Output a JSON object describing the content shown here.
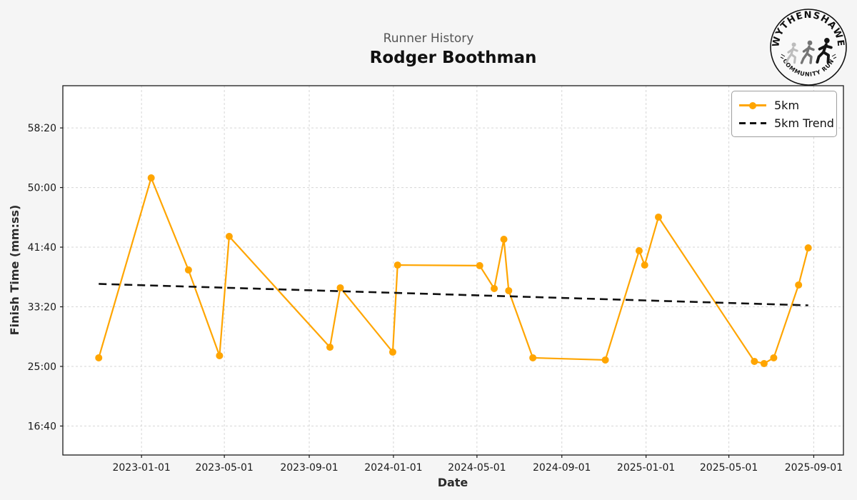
{
  "header": {
    "suptitle": "Runner History",
    "title": "Rodger Boothman"
  },
  "logo": {
    "top_text": "WYTHENSHAWE",
    "bottom_text": "COMMUNITY RUN"
  },
  "legend": {
    "items": [
      {
        "label": "5km"
      },
      {
        "label": "5km Trend"
      }
    ]
  },
  "colors": {
    "series": "#FFA500",
    "trend": "#111111",
    "figure_bg": "#f5f5f5",
    "plot_bg": "#ffffff",
    "grid": "#d6d6d6",
    "suptitle": "#555555"
  },
  "chart_data": {
    "type": "line",
    "title": "Rodger Boothman",
    "suptitle": "Runner History",
    "xlabel": "Date",
    "ylabel": "Finish Time (mm:ss)",
    "grid": true,
    "legend_position": "upper right",
    "xlim": [
      "2022-09-09",
      "2025-10-14"
    ],
    "ylim_seconds": [
      757,
      3854
    ],
    "x_ticks": [
      {
        "date": "2023-01-01",
        "label": "2023-01-01"
      },
      {
        "date": "2023-05-01",
        "label": "2023-05-01"
      },
      {
        "date": "2023-09-01",
        "label": "2023-09-01"
      },
      {
        "date": "2024-01-01",
        "label": "2024-01-01"
      },
      {
        "date": "2024-05-01",
        "label": "2024-05-01"
      },
      {
        "date": "2024-09-01",
        "label": "2024-09-01"
      },
      {
        "date": "2025-01-01",
        "label": "2025-01-01"
      },
      {
        "date": "2025-05-01",
        "label": "2025-05-01"
      },
      {
        "date": "2025-09-01",
        "label": "2025-09-01"
      }
    ],
    "y_ticks": [
      {
        "seconds": 1000,
        "label": "16:40"
      },
      {
        "seconds": 1500,
        "label": "25:00"
      },
      {
        "seconds": 2000,
        "label": "33:20"
      },
      {
        "seconds": 2500,
        "label": "41:40"
      },
      {
        "seconds": 3000,
        "label": "50:00"
      },
      {
        "seconds": 3500,
        "label": "58:20"
      }
    ],
    "series": [
      {
        "name": "5km",
        "color": "#FFA500",
        "style": "solid",
        "marker": "circle",
        "points": [
          {
            "date": "2022-10-31",
            "time": "26:12",
            "seconds": 1572
          },
          {
            "date": "2023-01-15",
            "time": "51:21",
            "seconds": 3081
          },
          {
            "date": "2023-03-10",
            "time": "38:29",
            "seconds": 2309
          },
          {
            "date": "2023-04-24",
            "time": "26:30",
            "seconds": 1590
          },
          {
            "date": "2023-05-08",
            "time": "43:10",
            "seconds": 2590
          },
          {
            "date": "2023-10-01",
            "time": "27:41",
            "seconds": 1661
          },
          {
            "date": "2023-10-16",
            "time": "35:59",
            "seconds": 2159
          },
          {
            "date": "2023-12-31",
            "time": "27:00",
            "seconds": 1620
          },
          {
            "date": "2024-01-07",
            "time": "39:10",
            "seconds": 2350
          },
          {
            "date": "2024-05-05",
            "time": "39:05",
            "seconds": 2345
          },
          {
            "date": "2024-05-26",
            "time": "35:53",
            "seconds": 2153
          },
          {
            "date": "2024-06-09",
            "time": "42:46",
            "seconds": 2566
          },
          {
            "date": "2024-06-16",
            "time": "35:35",
            "seconds": 2135
          },
          {
            "date": "2024-07-21",
            "time": "26:12",
            "seconds": 1572
          },
          {
            "date": "2024-11-03",
            "time": "25:54",
            "seconds": 1554
          },
          {
            "date": "2024-12-22",
            "time": "41:10",
            "seconds": 2470
          },
          {
            "date": "2024-12-30",
            "time": "39:10",
            "seconds": 2350
          },
          {
            "date": "2025-01-19",
            "time": "45:52",
            "seconds": 2752
          },
          {
            "date": "2025-06-07",
            "time": "25:42",
            "seconds": 1542
          },
          {
            "date": "2025-06-21",
            "time": "25:24",
            "seconds": 1524
          },
          {
            "date": "2025-07-05",
            "time": "26:12",
            "seconds": 1572
          },
          {
            "date": "2025-08-10",
            "time": "36:23",
            "seconds": 2183
          },
          {
            "date": "2025-08-24",
            "time": "41:34",
            "seconds": 2494
          }
        ]
      },
      {
        "name": "5km Trend",
        "color": "#111111",
        "style": "dashed",
        "marker": null,
        "points": [
          {
            "date": "2022-10-31",
            "time": "36:32",
            "seconds": 2192
          },
          {
            "date": "2025-08-24",
            "time": "33:32",
            "seconds": 2012
          }
        ]
      }
    ]
  }
}
